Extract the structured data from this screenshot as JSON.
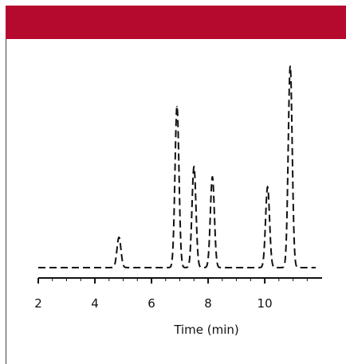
{
  "header": {
    "color": "#b5092d"
  },
  "chart_data": {
    "type": "line",
    "title": "",
    "xlabel": "Time (min)",
    "ylabel": "",
    "xlim": [
      2,
      11.8
    ],
    "ylim": [
      0,
      1
    ],
    "grid": false,
    "line_style": "dashed",
    "line_color": "#111111",
    "x_ticks": [
      2,
      4,
      6,
      8,
      10
    ],
    "x_tick_labels": [
      "2",
      "4",
      "6",
      "8",
      "10"
    ],
    "baseline": 0.02,
    "peaks": [
      {
        "time": 4.85,
        "height": 0.15
      },
      {
        "time": 6.9,
        "height": 0.8
      },
      {
        "time": 7.5,
        "height": 0.5
      },
      {
        "time": 8.15,
        "height": 0.45
      },
      {
        "time": 10.1,
        "height": 0.4
      },
      {
        "time": 10.9,
        "height": 1.0
      }
    ]
  }
}
